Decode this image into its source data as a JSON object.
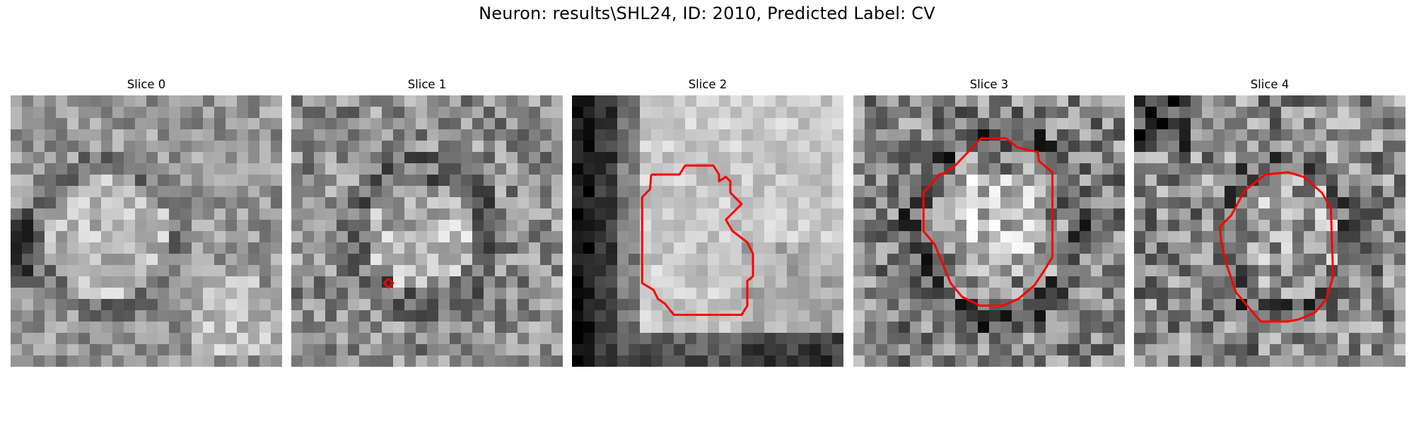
{
  "suptitle": "Neuron: results\\SHL24, ID: 2010, Predicted Label: CV",
  "panels": [
    {
      "title": "Slice 0"
    },
    {
      "title": "Slice 1"
    },
    {
      "title": "Slice 2"
    },
    {
      "title": "Slice 3"
    },
    {
      "title": "Slice 4"
    }
  ],
  "colors": {
    "contour": "#ff0000",
    "background": "#ffffff",
    "colormap": "gray"
  }
}
